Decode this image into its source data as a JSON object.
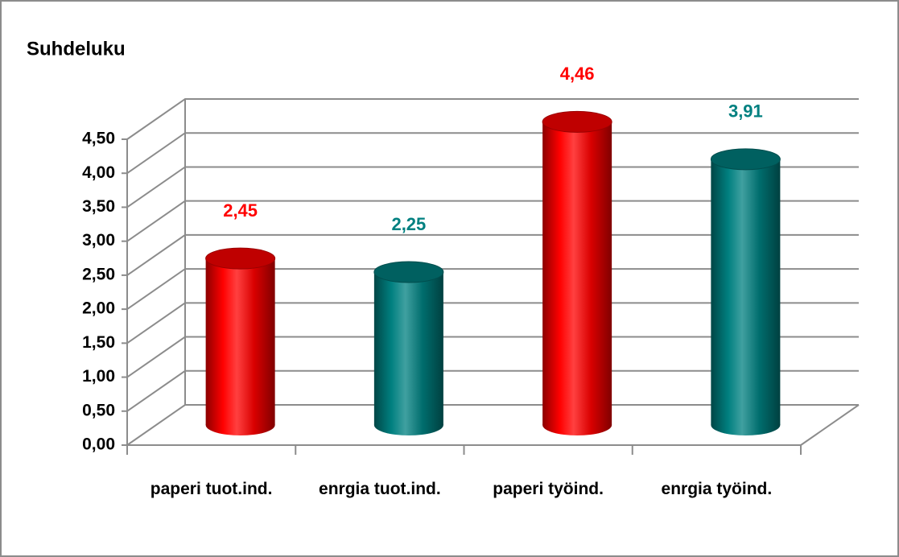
{
  "chart_data": {
    "type": "bar3d",
    "title": "Suhdeluku",
    "categories": [
      "paperi tuot.ind.",
      "enrgia tuot.ind.",
      "paperi työind.",
      "enrgia työind."
    ],
    "values": [
      2.45,
      2.25,
      4.46,
      3.91
    ],
    "value_labels": [
      "2,45",
      "2,25",
      "4,46",
      "3,91"
    ],
    "colors": [
      "#ff0000",
      "#008080",
      "#ff0000",
      "#008080"
    ],
    "ylim": [
      0,
      4.5
    ],
    "yticks": [
      {
        "value": 0,
        "label": "0,00"
      },
      {
        "value": 0.5,
        "label": "0,50"
      },
      {
        "value": 1,
        "label": "1,00"
      },
      {
        "value": 1.5,
        "label": "1,50"
      },
      {
        "value": 2,
        "label": "2,00"
      },
      {
        "value": 2.5,
        "label": "2,50"
      },
      {
        "value": 3,
        "label": "3,00"
      },
      {
        "value": 3.5,
        "label": "3,50"
      },
      {
        "value": 4,
        "label": "4,00"
      },
      {
        "value": 4.5,
        "label": "4,50"
      }
    ],
    "grid": true
  }
}
